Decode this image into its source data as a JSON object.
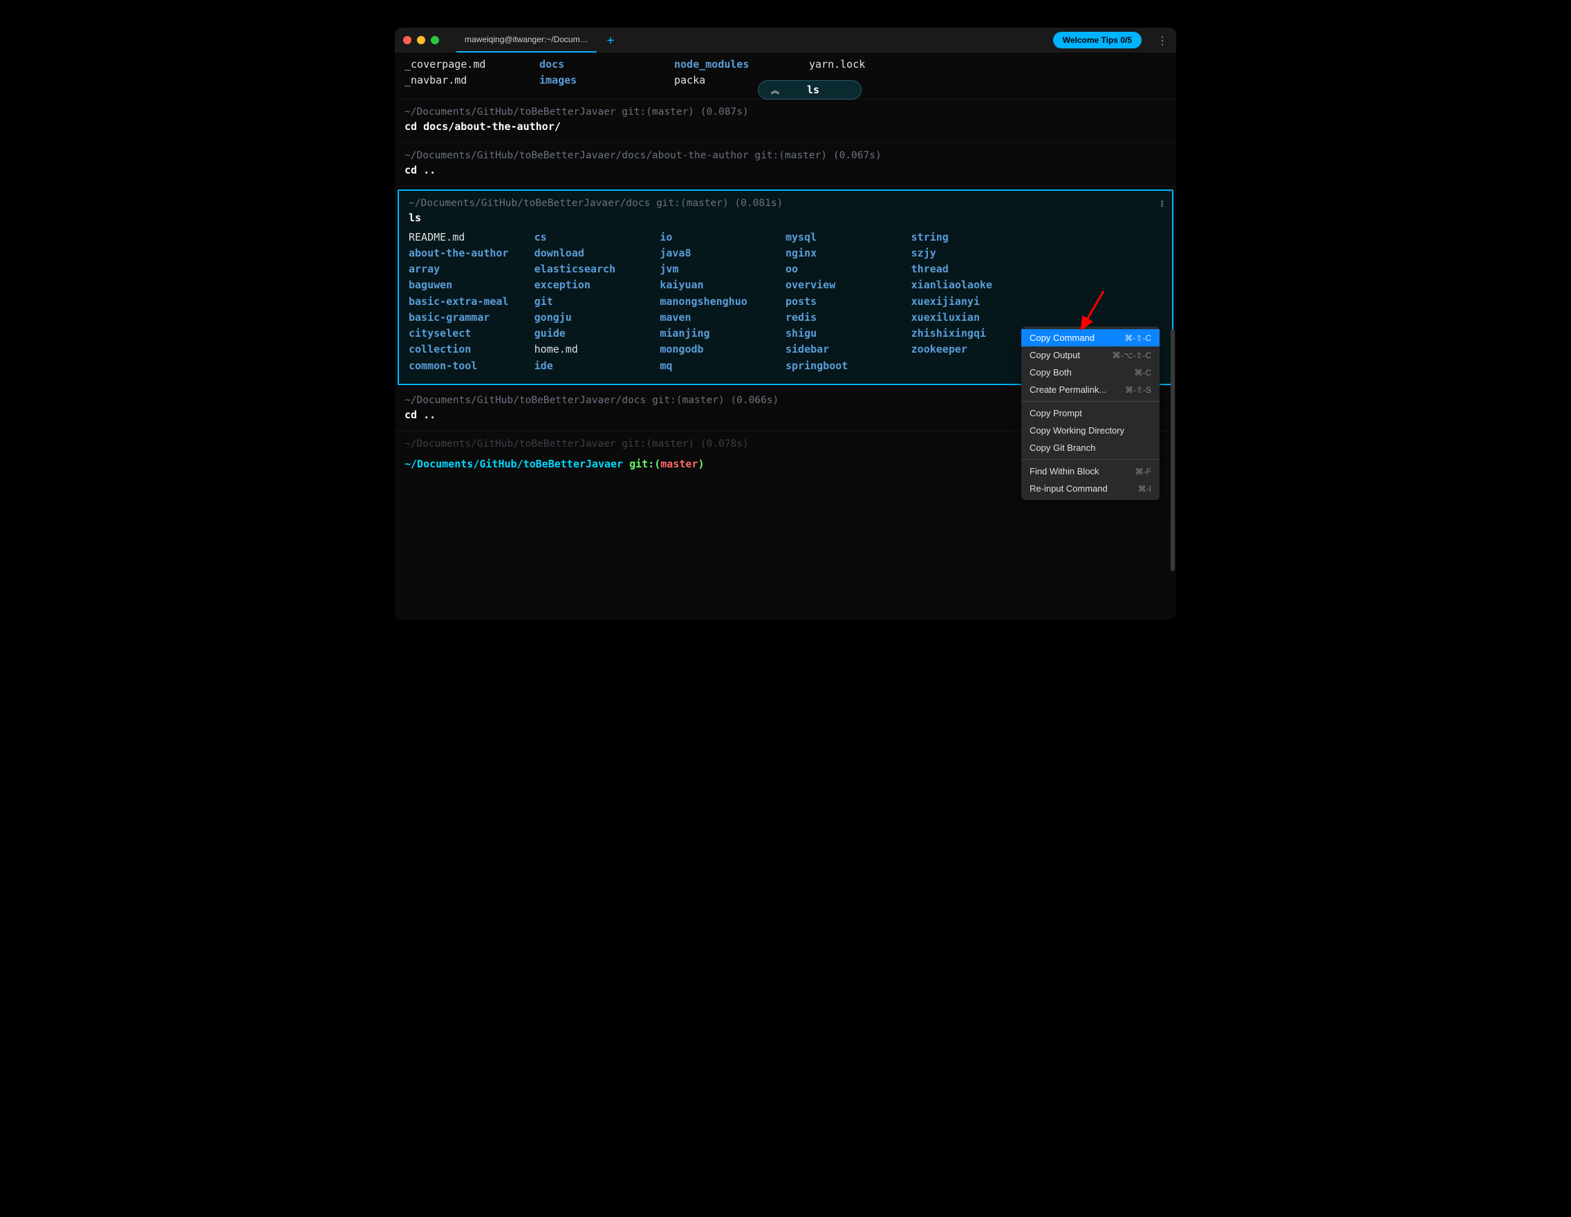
{
  "titlebar": {
    "tab_title": "maweiqing@itwanger:~/Docum…",
    "welcome_tips": "Welcome Tips 0/5",
    "new_tab": "+"
  },
  "history_bubble": {
    "command": "ls"
  },
  "top_block": {
    "col1": [
      "_coverpage.md",
      "_navbar.md"
    ],
    "col2": [
      "docs",
      "images"
    ],
    "col3": [
      "node_modules",
      "packa"
    ],
    "col4": [
      "yarn.lock",
      ""
    ]
  },
  "block1": {
    "path": "~/Documents/GitHub/toBeBetterJavaer",
    "git": "git:(master)",
    "duration": "(0.087s)",
    "command": "cd docs/about-the-author/"
  },
  "block2": {
    "path": "~/Documents/GitHub/toBeBetterJavaer/docs/about-the-author",
    "git": "git:(master)",
    "duration": "(0.067s)",
    "command": "cd .."
  },
  "block3": {
    "path": "~/Documents/GitHub/toBeBetterJavaer/docs",
    "git": "git:(master)",
    "duration": "(0.081s)",
    "command": "ls",
    "cols": [
      [
        {
          "name": "README.md",
          "type": "file"
        },
        {
          "name": "about-the-author",
          "type": "dir"
        },
        {
          "name": "array",
          "type": "dir"
        },
        {
          "name": "baguwen",
          "type": "dir"
        },
        {
          "name": "basic-extra-meal",
          "type": "dir"
        },
        {
          "name": "basic-grammar",
          "type": "dir"
        },
        {
          "name": "cityselect",
          "type": "dir"
        },
        {
          "name": "collection",
          "type": "dir"
        },
        {
          "name": "common-tool",
          "type": "dir"
        }
      ],
      [
        {
          "name": "cs",
          "type": "dir"
        },
        {
          "name": "download",
          "type": "dir"
        },
        {
          "name": "elasticsearch",
          "type": "dir"
        },
        {
          "name": "exception",
          "type": "dir"
        },
        {
          "name": "git",
          "type": "dir"
        },
        {
          "name": "gongju",
          "type": "dir"
        },
        {
          "name": "guide",
          "type": "dir"
        },
        {
          "name": "home.md",
          "type": "file"
        },
        {
          "name": "ide",
          "type": "dir"
        }
      ],
      [
        {
          "name": "io",
          "type": "dir"
        },
        {
          "name": "java8",
          "type": "dir"
        },
        {
          "name": "jvm",
          "type": "dir"
        },
        {
          "name": "kaiyuan",
          "type": "dir"
        },
        {
          "name": "manongshenghuo",
          "type": "dir"
        },
        {
          "name": "maven",
          "type": "dir"
        },
        {
          "name": "mianjing",
          "type": "dir"
        },
        {
          "name": "mongodb",
          "type": "dir"
        },
        {
          "name": "mq",
          "type": "dir"
        }
      ],
      [
        {
          "name": "mysql",
          "type": "dir"
        },
        {
          "name": "nginx",
          "type": "dir"
        },
        {
          "name": "oo",
          "type": "dir"
        },
        {
          "name": "overview",
          "type": "dir"
        },
        {
          "name": "posts",
          "type": "dir"
        },
        {
          "name": "redis",
          "type": "dir"
        },
        {
          "name": "shigu",
          "type": "dir"
        },
        {
          "name": "sidebar",
          "type": "dir"
        },
        {
          "name": "springboot",
          "type": "dir"
        }
      ],
      [
        {
          "name": "string",
          "type": "dir"
        },
        {
          "name": "szjy",
          "type": "dir"
        },
        {
          "name": "thread",
          "type": "dir"
        },
        {
          "name": "xianliaolaoke",
          "type": "dir"
        },
        {
          "name": "xuexijianyi",
          "type": "dir"
        },
        {
          "name": "xuexiluxian",
          "type": "dir"
        },
        {
          "name": "zhishixingqi",
          "type": "dir"
        },
        {
          "name": "zookeeper",
          "type": "dir"
        }
      ]
    ]
  },
  "block4": {
    "path": "~/Documents/GitHub/toBeBetterJavaer/docs",
    "git": "git:(master)",
    "duration": "(0.066s)",
    "command": "cd .."
  },
  "partial_block": {
    "path": "~/Documents/GitHub/toBeBetterJavaer",
    "git": "git:(master)",
    "duration": "(0.078s)"
  },
  "final_prompt": {
    "path": "~/Documents/GitHub/toBeBetterJavaer",
    "git_label": "git:",
    "branch": "master"
  },
  "context_menu": {
    "items": [
      {
        "label": "Copy Command",
        "shortcut": "⌘-⇧-C",
        "selected": true
      },
      {
        "label": "Copy Output",
        "shortcut": "⌘-⌥-⇧-C"
      },
      {
        "label": "Copy Both",
        "shortcut": "⌘-C"
      },
      {
        "label": "Create Permalink...",
        "shortcut": "⌘-⇧-S"
      },
      {
        "divider": true
      },
      {
        "label": "Copy Prompt"
      },
      {
        "label": "Copy Working Directory"
      },
      {
        "label": "Copy Git Branch"
      },
      {
        "divider": true
      },
      {
        "label": "Find Within Block",
        "shortcut": "⌘-F"
      },
      {
        "label": "Re-input Command",
        "shortcut": "⌘-I"
      }
    ]
  },
  "colors": {
    "accent": "#00b4ff",
    "dir": "#5b9dd9",
    "file": "#e0e0e0",
    "prompt_cyan": "#00d9ff",
    "prompt_green": "#66ff66",
    "prompt_red": "#ff6b6b",
    "menu_highlight": "#0a84ff",
    "arrow": "#ff0000"
  }
}
